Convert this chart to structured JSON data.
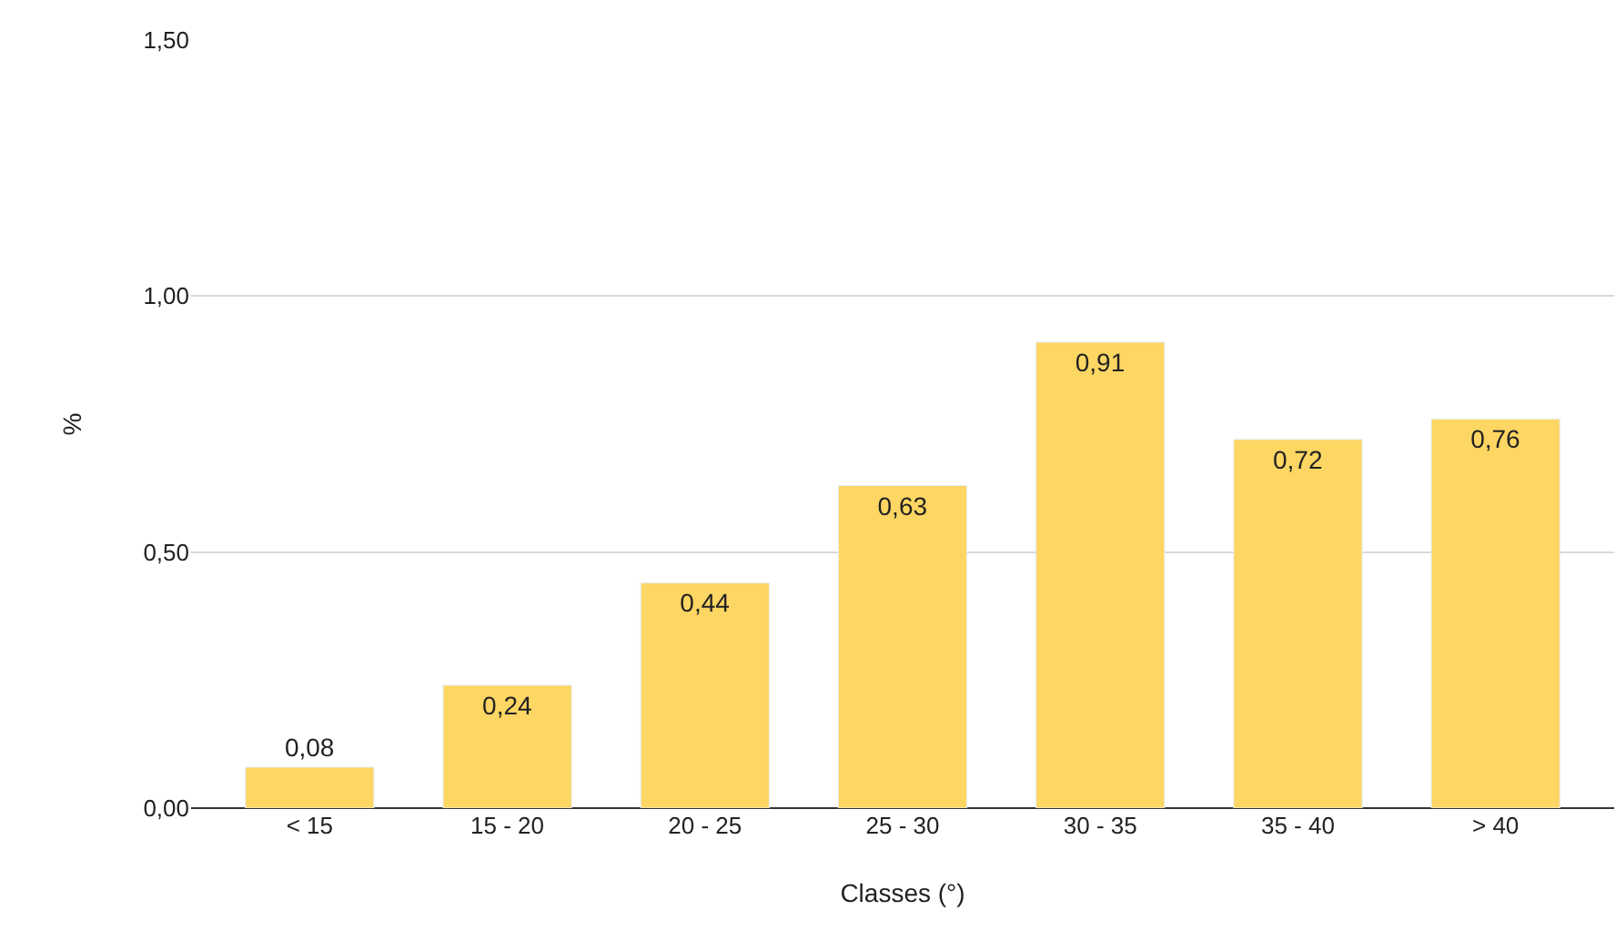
{
  "chart_data": {
    "type": "bar",
    "xlabel": "Classes (°)",
    "ylabel": "%",
    "categories": [
      "< 15",
      "15 - 20",
      "20 - 25",
      "25 - 30",
      "30 - 35",
      "35 - 40",
      "> 40"
    ],
    "values": [
      0.08,
      0.24,
      0.44,
      0.63,
      0.91,
      0.72,
      0.76
    ],
    "value_labels": [
      "0,08",
      "0,24",
      "0,44",
      "0,63",
      "0,91",
      "0,72",
      "0,76"
    ],
    "color": "#fdd663",
    "ylim": [
      0,
      1.5
    ],
    "yticks": [
      {
        "value": 0,
        "label": "0,00"
      },
      {
        "value": 0.5,
        "label": "0,50"
      },
      {
        "value": 1,
        "label": "1,00"
      },
      {
        "value": 1.5,
        "label": "1,50"
      }
    ],
    "grid": "y",
    "legend": false
  }
}
